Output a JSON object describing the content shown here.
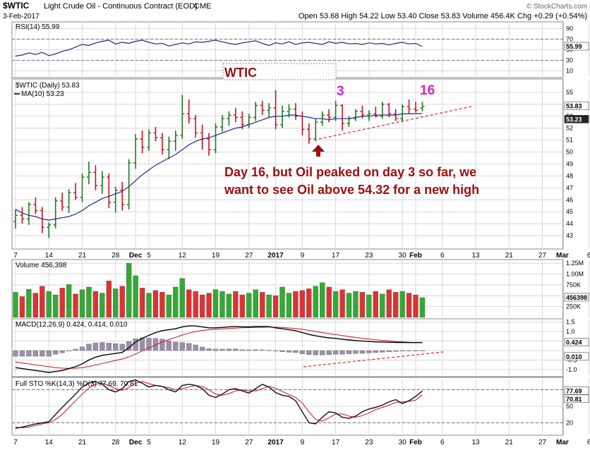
{
  "header": {
    "symbol": "$WTIC",
    "description": "Light Crude Oil - Continuous Contract (EOD)",
    "exchange": "CME",
    "watermark": "© StockCharts.com",
    "date": "3-Feb-2017",
    "ohlc_line": "Open 53.68  High 54.22  Low 53.40  Close 53.83  Volume 456.4K  Chg +0.29 (+0.54%)"
  },
  "colors": {
    "up": "#1f7a1f",
    "down": "#cc1122",
    "ma": "#1a2a9a",
    "panel_bg": "#ffffff",
    "grid": "#d8d8d8",
    "annotation": "#9a1010",
    "magenta": "#e020c0",
    "rsi_line": "#1a2a7a",
    "vol_up": "#33aa33",
    "vol_down": "#dd3333",
    "hist": "#9a90a8",
    "sto_k": "#111111",
    "sto_d": "#cc1122"
  },
  "chart_data": [
    {
      "type": "line",
      "panel": "rsi",
      "label": "RSI(14) 55.99",
      "y_ticks": [
        10,
        30,
        50,
        70,
        90
      ],
      "ylim": [
        0,
        100
      ],
      "reference_lines": [
        30,
        70
      ],
      "last_value": "55.99",
      "values": [
        38,
        40,
        44,
        41,
        45,
        39,
        42,
        47,
        50,
        55,
        60,
        58,
        63,
        66,
        68,
        61,
        64,
        62,
        66,
        68,
        64,
        61,
        62,
        57,
        60,
        63,
        61,
        65,
        64,
        66,
        68,
        65,
        62,
        60,
        63,
        65,
        67,
        62,
        58,
        63,
        61,
        65,
        60,
        63,
        64,
        62,
        60,
        65,
        62,
        64,
        61,
        62,
        60,
        63,
        61,
        62,
        59,
        62,
        64,
        61,
        62,
        56
      ]
    },
    {
      "type": "candlestick",
      "panel": "price",
      "label": "$WTIC (Daily) 53.83",
      "ma_label": "MA(10) 53.23",
      "ylim": [
        42,
        56
      ],
      "y_ticks": [
        43,
        44,
        45,
        46,
        47,
        48,
        49,
        50,
        51,
        52,
        53,
        54,
        55
      ],
      "last_close": "53.83",
      "last_ma": "53.23",
      "x_tick_labels": [
        "7",
        "14",
        "21",
        "28",
        "Dec",
        "5",
        "12",
        "19",
        "27",
        "2017",
        "9",
        "17",
        "23",
        "30",
        "Feb",
        "6",
        "13",
        "21",
        "27",
        "Mar",
        "6"
      ],
      "x_tick_bars": [
        0,
        5,
        10,
        15,
        18,
        20,
        25,
        30,
        35,
        39,
        43,
        48,
        53,
        58,
        60,
        64,
        69,
        74,
        79,
        82,
        86
      ],
      "bars": [
        {
          "o": 44.2,
          "h": 45.2,
          "l": 43.6,
          "c": 44.7
        },
        {
          "o": 44.7,
          "h": 45.4,
          "l": 44.0,
          "c": 44.4
        },
        {
          "o": 44.4,
          "h": 45.8,
          "l": 43.9,
          "c": 45.6
        },
        {
          "o": 45.6,
          "h": 46.2,
          "l": 44.8,
          "c": 45.1
        },
        {
          "o": 45.1,
          "h": 45.4,
          "l": 43.2,
          "c": 43.7
        },
        {
          "o": 43.7,
          "h": 44.1,
          "l": 42.8,
          "c": 43.9
        },
        {
          "o": 43.9,
          "h": 46.2,
          "l": 43.6,
          "c": 45.9
        },
        {
          "o": 45.9,
          "h": 46.6,
          "l": 45.1,
          "c": 45.4
        },
        {
          "o": 45.4,
          "h": 46.9,
          "l": 44.9,
          "c": 46.6
        },
        {
          "o": 46.6,
          "h": 47.4,
          "l": 46.0,
          "c": 46.2
        },
        {
          "o": 46.2,
          "h": 48.2,
          "l": 45.8,
          "c": 47.9
        },
        {
          "o": 47.9,
          "h": 49.2,
          "l": 47.3,
          "c": 48.3
        },
        {
          "o": 48.3,
          "h": 48.9,
          "l": 46.8,
          "c": 47.2
        },
        {
          "o": 47.2,
          "h": 48.4,
          "l": 46.5,
          "c": 47.9
        },
        {
          "o": 47.9,
          "h": 48.2,
          "l": 45.3,
          "c": 45.8
        },
        {
          "o": 45.8,
          "h": 47.1,
          "l": 44.9,
          "c": 46.8
        },
        {
          "o": 46.8,
          "h": 47.5,
          "l": 45.1,
          "c": 45.6
        },
        {
          "o": 45.6,
          "h": 49.4,
          "l": 45.2,
          "c": 49.1
        },
        {
          "o": 49.1,
          "h": 51.5,
          "l": 48.6,
          "c": 51.1
        },
        {
          "o": 51.1,
          "h": 51.8,
          "l": 49.9,
          "c": 50.4
        },
        {
          "o": 50.4,
          "h": 51.9,
          "l": 50.1,
          "c": 51.6
        },
        {
          "o": 51.6,
          "h": 52.1,
          "l": 50.9,
          "c": 51.2
        },
        {
          "o": 51.2,
          "h": 51.6,
          "l": 49.8,
          "c": 50.2
        },
        {
          "o": 50.2,
          "h": 51.3,
          "l": 49.4,
          "c": 50.9
        },
        {
          "o": 50.9,
          "h": 51.8,
          "l": 50.1,
          "c": 51.4
        },
        {
          "o": 51.4,
          "h": 54.8,
          "l": 51.1,
          "c": 53.2
        },
        {
          "o": 53.2,
          "h": 54.4,
          "l": 52.4,
          "c": 52.8
        },
        {
          "o": 52.8,
          "h": 53.1,
          "l": 51.2,
          "c": 51.6
        },
        {
          "o": 51.6,
          "h": 52.3,
          "l": 50.2,
          "c": 51.1
        },
        {
          "o": 51.1,
          "h": 51.6,
          "l": 49.7,
          "c": 50.2
        },
        {
          "o": 50.2,
          "h": 52.4,
          "l": 49.9,
          "c": 52.1
        },
        {
          "o": 52.1,
          "h": 53.1,
          "l": 51.7,
          "c": 52.8
        },
        {
          "o": 52.8,
          "h": 53.4,
          "l": 52.2,
          "c": 53.1
        },
        {
          "o": 53.1,
          "h": 53.7,
          "l": 52.5,
          "c": 52.9
        },
        {
          "o": 52.9,
          "h": 53.4,
          "l": 51.9,
          "c": 52.3
        },
        {
          "o": 52.3,
          "h": 53.2,
          "l": 52.0,
          "c": 52.9
        },
        {
          "o": 52.9,
          "h": 54.2,
          "l": 52.6,
          "c": 53.9
        },
        {
          "o": 53.9,
          "h": 54.3,
          "l": 53.1,
          "c": 53.5
        },
        {
          "o": 53.5,
          "h": 54.1,
          "l": 52.9,
          "c": 53.7
        },
        {
          "o": 53.7,
          "h": 55.2,
          "l": 51.9,
          "c": 52.3
        },
        {
          "o": 52.3,
          "h": 53.9,
          "l": 52.0,
          "c": 53.4
        },
        {
          "o": 53.4,
          "h": 54.0,
          "l": 52.9,
          "c": 53.6
        },
        {
          "o": 53.6,
          "h": 54.1,
          "l": 52.7,
          "c": 53.0
        },
        {
          "o": 53.0,
          "h": 53.4,
          "l": 51.4,
          "c": 51.9
        },
        {
          "o": 51.9,
          "h": 52.4,
          "l": 50.7,
          "c": 51.1
        },
        {
          "o": 51.1,
          "h": 52.8,
          "l": 50.9,
          "c": 52.5
        },
        {
          "o": 52.5,
          "h": 53.4,
          "l": 52.2,
          "c": 53.1
        },
        {
          "o": 53.1,
          "h": 53.6,
          "l": 52.5,
          "c": 52.9
        },
        {
          "o": 52.9,
          "h": 54.3,
          "l": 52.6,
          "c": 53.9
        },
        {
          "o": 53.9,
          "h": 54.0,
          "l": 51.8,
          "c": 52.4
        },
        {
          "o": 52.4,
          "h": 53.0,
          "l": 52.1,
          "c": 52.8
        },
        {
          "o": 52.8,
          "h": 53.6,
          "l": 52.6,
          "c": 53.4
        },
        {
          "o": 53.4,
          "h": 53.9,
          "l": 52.8,
          "c": 53.1
        },
        {
          "o": 53.1,
          "h": 53.5,
          "l": 52.6,
          "c": 53.2
        },
        {
          "o": 53.2,
          "h": 53.8,
          "l": 52.9,
          "c": 53.0
        },
        {
          "o": 53.0,
          "h": 54.2,
          "l": 52.8,
          "c": 54.0
        },
        {
          "o": 54.0,
          "h": 54.1,
          "l": 52.9,
          "c": 53.2
        },
        {
          "o": 53.2,
          "h": 53.6,
          "l": 52.6,
          "c": 52.8
        },
        {
          "o": 52.8,
          "h": 54.0,
          "l": 52.5,
          "c": 53.8
        },
        {
          "o": 53.8,
          "h": 54.4,
          "l": 53.2,
          "c": 53.6
        },
        {
          "o": 53.6,
          "h": 54.2,
          "l": 53.3,
          "c": 53.5
        },
        {
          "o": 53.68,
          "h": 54.22,
          "l": 53.4,
          "c": 53.83
        }
      ],
      "ma": [
        45.2,
        44.9,
        44.7,
        44.6,
        44.4,
        44.3,
        44.4,
        44.5,
        44.6,
        44.8,
        45.1,
        45.5,
        45.8,
        46.1,
        46.3,
        46.5,
        46.7,
        47.1,
        47.6,
        48.1,
        48.5,
        48.9,
        49.2,
        49.5,
        49.8,
        50.2,
        50.6,
        50.9,
        51.1,
        51.2,
        51.4,
        51.6,
        51.8,
        52.0,
        52.1,
        52.3,
        52.5,
        52.7,
        52.9,
        53.0,
        53.0,
        53.1,
        53.1,
        53.0,
        52.9,
        52.8,
        52.8,
        52.7,
        52.8,
        52.8,
        52.8,
        52.9,
        53.0,
        53.0,
        53.1,
        53.1,
        53.1,
        53.1,
        53.2,
        53.2,
        53.2,
        53.23
      ]
    },
    {
      "type": "bar",
      "panel": "volume",
      "label": "Volume 456,398",
      "ylim": [
        0,
        1300000
      ],
      "y_ticks": [
        250000,
        500000,
        750000,
        1000000,
        1250000
      ],
      "y_tick_labels": [
        "250K",
        "500K",
        "750K",
        "1.00M",
        "1.25M"
      ],
      "last_value": "456398",
      "values": [
        580000,
        480000,
        650000,
        560000,
        720000,
        600000,
        520000,
        680000,
        760000,
        540000,
        640000,
        700000,
        600000,
        560000,
        840000,
        660000,
        720000,
        1250000,
        960000,
        680000,
        560000,
        620000,
        580000,
        520000,
        700000,
        900000,
        640000,
        600000,
        520000,
        560000,
        640000,
        600000,
        540000,
        600000,
        520000,
        560000,
        640000,
        580000,
        520000,
        500000,
        700000,
        560000,
        600000,
        620000,
        660000,
        720000,
        800000,
        700000,
        600000,
        640000,
        560000,
        600000,
        580000,
        520000,
        600000,
        540000,
        640000,
        580000,
        600000,
        560000,
        520000,
        456398
      ]
    },
    {
      "type": "line",
      "panel": "macd",
      "label": "MACD(12,26,9) 0.424, 0.414, 0.010",
      "ylim": [
        -1.3,
        1.6
      ],
      "y_ticks": [
        -1.0,
        -0.5,
        0.0,
        0.5,
        1.0,
        1.5
      ],
      "y_tick_labels": [
        "-1.0",
        "-0.5",
        "",
        "0.5",
        "1.0",
        "1.5"
      ],
      "last_macd": "0.424",
      "last_hist": "0.010",
      "macd": [
        -0.9,
        -0.95,
        -1.0,
        -1.05,
        -1.1,
        -1.15,
        -1.1,
        -1.05,
        -0.95,
        -0.85,
        -0.7,
        -0.5,
        -0.35,
        -0.25,
        -0.2,
        -0.15,
        -0.1,
        0.15,
        0.45,
        0.65,
        0.8,
        0.95,
        1.05,
        1.1,
        1.15,
        1.25,
        1.3,
        1.3,
        1.25,
        1.2,
        1.2,
        1.22,
        1.25,
        1.27,
        1.25,
        1.25,
        1.27,
        1.27,
        1.26,
        1.2,
        1.15,
        1.1,
        1.05,
        0.95,
        0.85,
        0.78,
        0.72,
        0.67,
        0.64,
        0.6,
        0.56,
        0.53,
        0.5,
        0.48,
        0.46,
        0.45,
        0.44,
        0.43,
        0.43,
        0.42,
        0.42,
        0.424
      ],
      "signal": [
        -0.6,
        -0.65,
        -0.7,
        -0.75,
        -0.8,
        -0.85,
        -0.9,
        -0.93,
        -0.94,
        -0.93,
        -0.9,
        -0.84,
        -0.76,
        -0.68,
        -0.6,
        -0.52,
        -0.44,
        -0.33,
        -0.18,
        -0.02,
        0.14,
        0.3,
        0.45,
        0.58,
        0.7,
        0.82,
        0.92,
        1.0,
        1.06,
        1.1,
        1.12,
        1.14,
        1.16,
        1.18,
        1.2,
        1.21,
        1.22,
        1.23,
        1.24,
        1.23,
        1.22,
        1.19,
        1.16,
        1.12,
        1.07,
        1.01,
        0.95,
        0.89,
        0.84,
        0.79,
        0.74,
        0.69,
        0.65,
        0.61,
        0.57,
        0.54,
        0.51,
        0.48,
        0.46,
        0.44,
        0.42,
        0.414
      ],
      "hist": [
        -0.3,
        -0.3,
        -0.3,
        -0.3,
        -0.3,
        -0.3,
        -0.2,
        -0.12,
        -0.01,
        0.08,
        0.2,
        0.34,
        0.41,
        0.43,
        0.4,
        0.37,
        0.34,
        0.48,
        0.63,
        0.67,
        0.66,
        0.65,
        0.6,
        0.52,
        0.45,
        0.43,
        0.38,
        0.3,
        0.19,
        0.1,
        0.08,
        0.08,
        0.09,
        0.09,
        0.05,
        0.04,
        0.05,
        0.04,
        0.02,
        -0.03,
        -0.07,
        -0.09,
        -0.11,
        -0.17,
        -0.22,
        -0.23,
        -0.23,
        -0.22,
        -0.2,
        -0.19,
        -0.18,
        -0.16,
        -0.15,
        -0.13,
        -0.11,
        -0.09,
        -0.07,
        -0.05,
        -0.03,
        -0.02,
        0.0,
        0.01
      ]
    },
    {
      "type": "line",
      "panel": "stochastic",
      "label": "Full STO %K(14,3) %D(3) 77.69, 70.81",
      "ylim": [
        0,
        100
      ],
      "y_ticks": [
        20,
        50,
        80
      ],
      "last_k": "77.69",
      "last_d": "70.81",
      "k": [
        10,
        12,
        15,
        18,
        20,
        22,
        35,
        48,
        60,
        72,
        85,
        92,
        95,
        90,
        80,
        76,
        82,
        95,
        98,
        92,
        85,
        88,
        86,
        80,
        76,
        88,
        90,
        88,
        82,
        70,
        66,
        72,
        80,
        82,
        78,
        74,
        82,
        90,
        85,
        75,
        70,
        68,
        60,
        40,
        20,
        18,
        30,
        40,
        38,
        30,
        28,
        32,
        40,
        45,
        48,
        52,
        58,
        62,
        55,
        60,
        68,
        77.69
      ],
      "d": [
        12,
        11,
        12,
        15,
        18,
        20,
        26,
        35,
        48,
        60,
        72,
        83,
        90,
        92,
        88,
        82,
        79,
        84,
        92,
        95,
        91,
        88,
        86,
        84,
        80,
        82,
        85,
        88,
        86,
        80,
        72,
        70,
        73,
        78,
        80,
        78,
        78,
        82,
        86,
        83,
        77,
        71,
        66,
        56,
        40,
        26,
        23,
        29,
        36,
        36,
        32,
        30,
        33,
        38,
        44,
        48,
        52,
        57,
        58,
        59,
        61,
        70.81
      ]
    }
  ],
  "annotations": {
    "box_label": "WTIC",
    "peak_label": "3",
    "day_label": "16",
    "note_line1": "Day 16, but Oil peaked on day 3 so far, we",
    "note_line2": "want to see Oil above 54.32 for a new high"
  }
}
